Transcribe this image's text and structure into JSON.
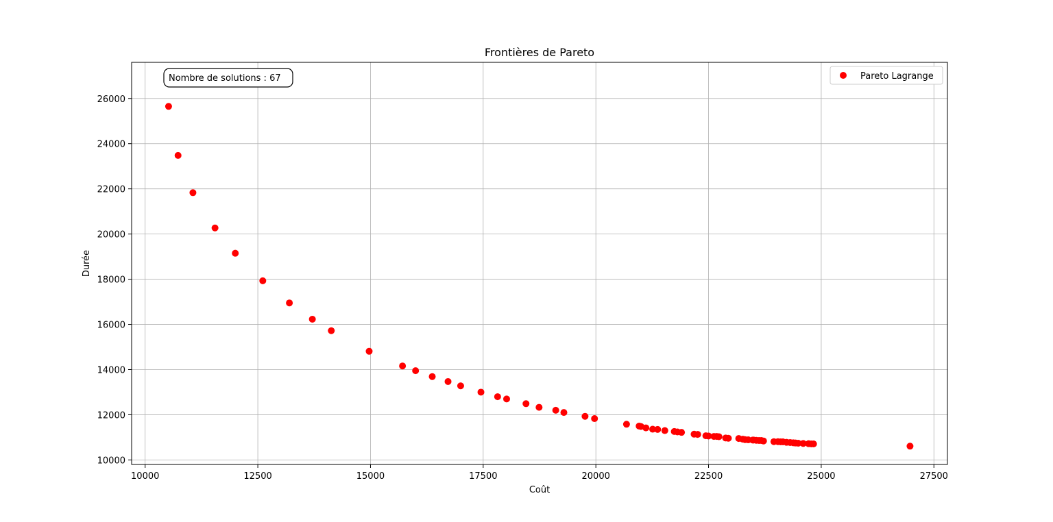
{
  "chart_data": {
    "type": "scatter",
    "title": "Frontières de Pareto",
    "xlabel": "Coût",
    "ylabel": "Durée",
    "xlim": [
      9700,
      27800
    ],
    "ylim": [
      9800,
      27600
    ],
    "xticks": [
      10000,
      12500,
      15000,
      17500,
      20000,
      22500,
      25000,
      27500
    ],
    "yticks": [
      10000,
      12000,
      14000,
      16000,
      18000,
      20000,
      22000,
      24000,
      26000
    ],
    "grid": true,
    "legend_position": "top-right",
    "annotation": "Nombre de solutions : 67",
    "series": [
      {
        "name": "Pareto Lagrange",
        "color": "#ff0000",
        "marker": "circle",
        "x": [
          10520,
          10730,
          11060,
          11550,
          12000,
          12610,
          13200,
          13710,
          14130,
          14970,
          15710,
          16000,
          16370,
          16720,
          17000,
          17450,
          17820,
          18020,
          18450,
          18740,
          19110,
          19290,
          19760,
          19970,
          20680,
          20960,
          21000,
          21110,
          21260,
          21370,
          21530,
          21740,
          21810,
          21900,
          22180,
          22260,
          22440,
          22500,
          22620,
          22680,
          22730,
          22880,
          23170,
          23260,
          23310,
          23380,
          23500,
          23560,
          23620,
          23670,
          23720,
          23950,
          24040,
          24100,
          24150,
          24230,
          24310,
          24380,
          24430,
          24490,
          24600,
          24720,
          24780,
          24830,
          26970,
          23480,
          22940
        ],
        "y": [
          25650,
          23480,
          21830,
          20270,
          19150,
          17930,
          16950,
          16230,
          15720,
          14810,
          14160,
          13950,
          13690,
          13470,
          13280,
          13000,
          12800,
          12700,
          12490,
          12330,
          12200,
          12100,
          11930,
          11830,
          11580,
          11500,
          11480,
          11420,
          11360,
          11350,
          11300,
          11260,
          11240,
          11220,
          11140,
          11130,
          11070,
          11060,
          11040,
          11040,
          11030,
          10970,
          10950,
          10920,
          10900,
          10890,
          10880,
          10870,
          10860,
          10860,
          10840,
          10810,
          10810,
          10800,
          10800,
          10780,
          10770,
          10760,
          10750,
          10740,
          10730,
          10720,
          10710,
          10710,
          10610,
          10880,
          10960
        ]
      }
    ]
  }
}
